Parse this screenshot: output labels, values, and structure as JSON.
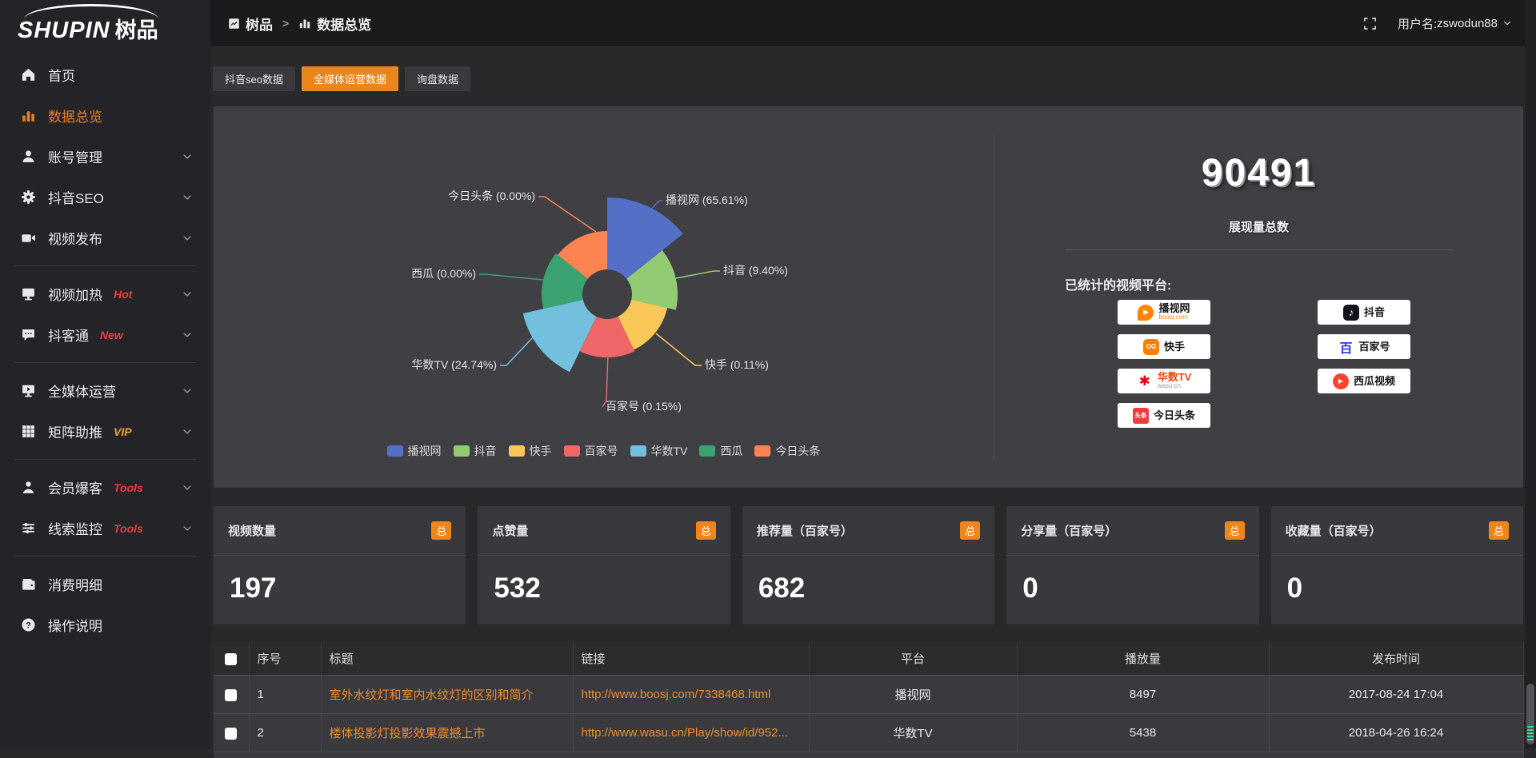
{
  "colors": {
    "accent": "#e9861c",
    "sidebar_active": "#ed7f1f",
    "hot_badge": "#f03b3b",
    "vip_badge": "#f0a32a",
    "panel_bg": "#403f44",
    "link_orange": "#ee8c2b"
  },
  "logo": {
    "brand_en": "SHUPIN",
    "brand_cn": "树品"
  },
  "sidebar": {
    "items": [
      {
        "label": "首页",
        "icon": "home-icon",
        "active": false,
        "expandable": false
      },
      {
        "label": "数据总览",
        "icon": "chart-icon",
        "active": true,
        "expandable": false
      },
      {
        "label": "账号管理",
        "icon": "user-icon",
        "expandable": true
      },
      {
        "label": "抖音SEO",
        "icon": "gear-icon",
        "expandable": true
      },
      {
        "label": "视频发布",
        "icon": "video-icon",
        "expandable": true,
        "divider_after": true
      },
      {
        "label": "视频加热",
        "icon": "screen-icon",
        "badge": "Hot",
        "badge_color": "#f03b3b",
        "expandable": true
      },
      {
        "label": "抖客通",
        "icon": "chat-icon",
        "badge": "New",
        "badge_color": "#f03b3b",
        "expandable": true,
        "divider_after": true
      },
      {
        "label": "全媒体运营",
        "icon": "monitor-icon",
        "expandable": true
      },
      {
        "label": "矩阵助推",
        "icon": "grid-icon",
        "badge": "VIP",
        "badge_color": "#f0a32a",
        "expandable": true,
        "divider_after": true
      },
      {
        "label": "会员爆客",
        "icon": "member-icon",
        "badge": "Tools",
        "badge_color": "#f03b3b",
        "expandable": true
      },
      {
        "label": "线索监控",
        "icon": "sliders-icon",
        "badge": "Tools",
        "badge_color": "#f03b3b",
        "expandable": true,
        "divider_after": true
      },
      {
        "label": "消费明细",
        "icon": "wallet-icon",
        "expandable": false
      },
      {
        "label": "操作说明",
        "icon": "question-icon",
        "expandable": false
      }
    ]
  },
  "header": {
    "breadcrumb": [
      {
        "label": "树品",
        "icon": "app-icon"
      },
      {
        "label": "数据总览",
        "icon": "chart-icon"
      }
    ],
    "separator": ">",
    "username_label": "用户名: ",
    "username": "zswodun88"
  },
  "tabs": [
    {
      "label": "抖音seo数据",
      "active": false
    },
    {
      "label": "全媒体运营数据",
      "active": true
    },
    {
      "label": "询盘数据",
      "active": false
    }
  ],
  "chart_data": {
    "type": "pie",
    "variant": "nightingale-rose",
    "title": "",
    "legend_position": "bottom",
    "items": [
      {
        "name": "播视网",
        "pct": 65.61,
        "color": "#5470c6"
      },
      {
        "name": "抖音",
        "pct": 9.4,
        "color": "#91cc75"
      },
      {
        "name": "快手",
        "pct": 0.11,
        "color": "#fac858"
      },
      {
        "name": "百家号",
        "pct": 0.15,
        "color": "#ee6666"
      },
      {
        "name": "华数TV",
        "pct": 24.74,
        "color": "#73c0de"
      },
      {
        "name": "西瓜",
        "pct": 0.0,
        "color": "#3ba272"
      },
      {
        "name": "今日头条",
        "pct": 0.0,
        "color": "#fc8452"
      }
    ]
  },
  "summary": {
    "total_value": "90491",
    "total_label": "展现量总数",
    "platforms_title": "已统计的视频平台:",
    "platforms_left": [
      {
        "name": "播视网",
        "sub": "boosj.com",
        "logo": "boosj"
      },
      {
        "name": "快手",
        "logo": "kuaishou"
      },
      {
        "name": "华数TV",
        "sub": "wasu.cn",
        "logo": "wasu"
      },
      {
        "name": "今日头条",
        "logo": "toutiao"
      }
    ],
    "platforms_right": [
      {
        "name": "抖音",
        "logo": "douyin"
      },
      {
        "name": "百家号",
        "logo": "baijiahao"
      },
      {
        "name": "西瓜视频",
        "logo": "xigua"
      }
    ]
  },
  "stat_cards": [
    {
      "label": "视频数量",
      "badge": "总",
      "value": "197"
    },
    {
      "label": "点赞量",
      "badge": "总",
      "value": "532"
    },
    {
      "label": "推荐量（百家号）",
      "badge": "总",
      "value": "682"
    },
    {
      "label": "分享量（百家号）",
      "badge": "总",
      "value": "0"
    },
    {
      "label": "收藏量（百家号）",
      "badge": "总",
      "value": "0"
    }
  ],
  "table": {
    "columns": [
      "序号",
      "标题",
      "链接",
      "平台",
      "播放量",
      "发布时间"
    ],
    "rows": [
      {
        "no": "1",
        "title": "室外水纹灯和室内水纹灯的区别和简介",
        "link": "http://www.boosj.com/7338468.html",
        "platform": "播视网",
        "plays": "8497",
        "time": "2017-08-24 17:04"
      },
      {
        "no": "2",
        "title": "楼体投影灯投影效果震撼上市",
        "link": "http://www.wasu.cn/Play/show/id/952...",
        "platform": "华数TV",
        "plays": "5438",
        "time": "2018-04-26 16:24"
      }
    ]
  }
}
